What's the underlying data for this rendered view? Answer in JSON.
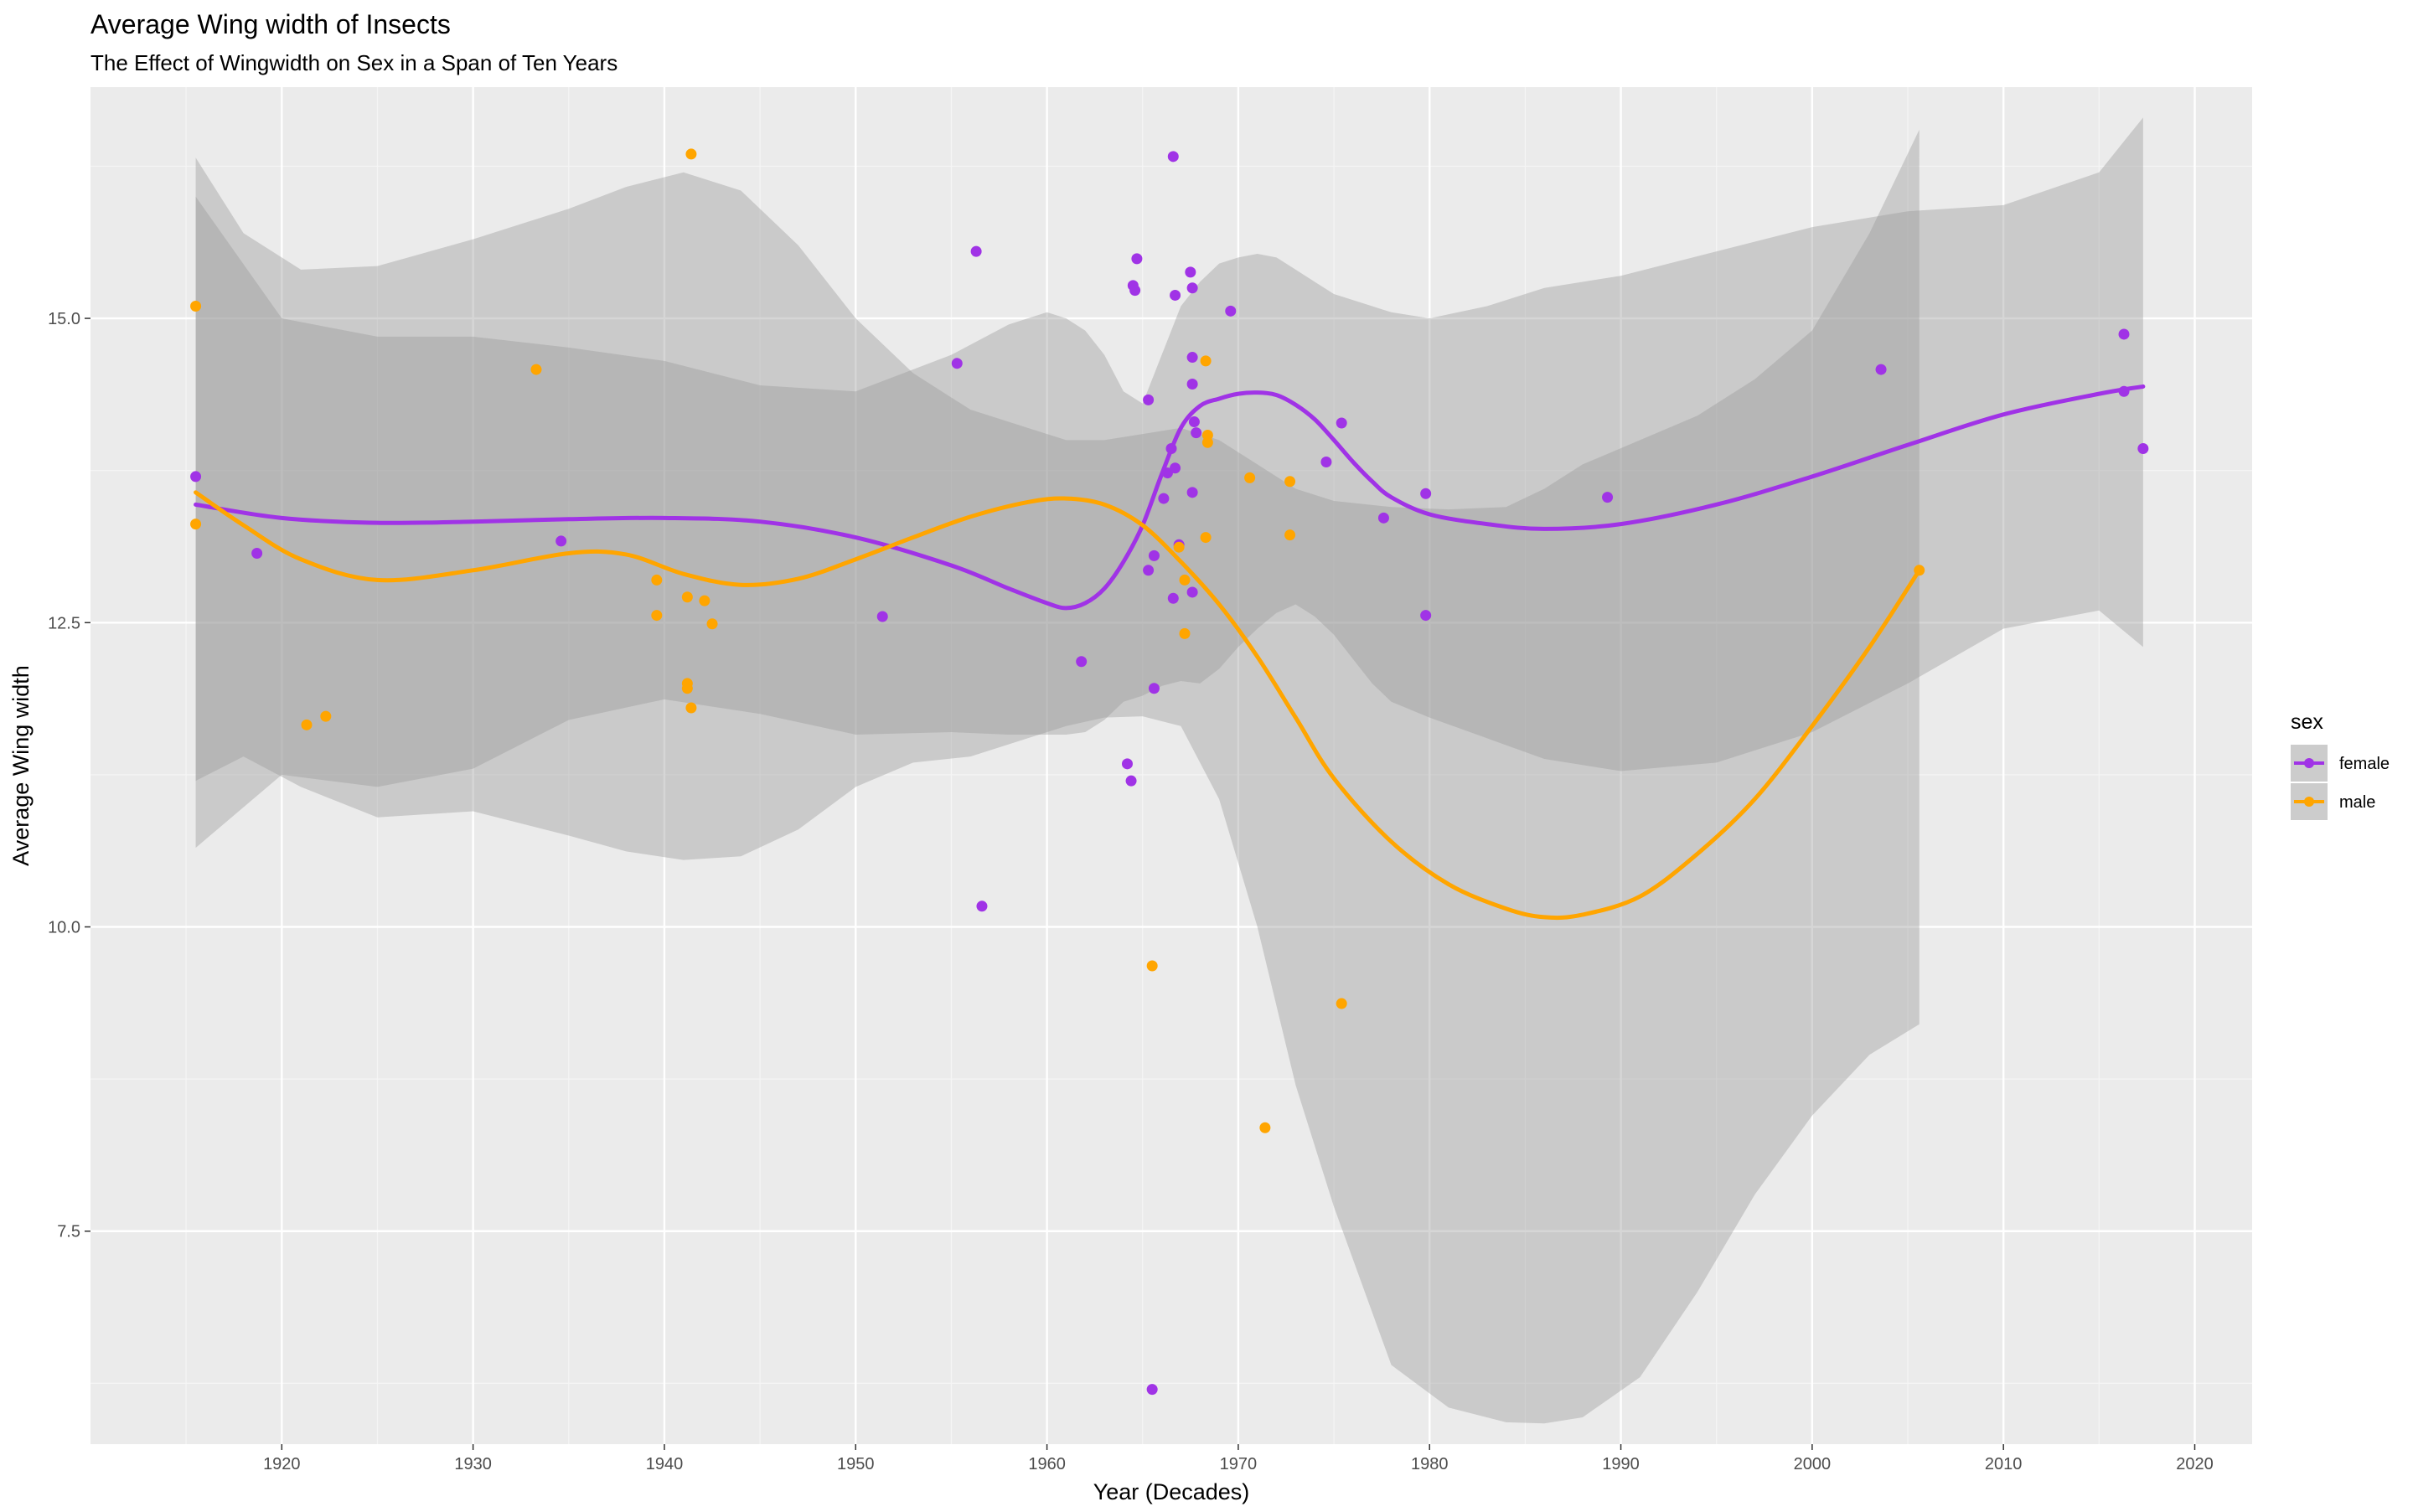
{
  "chart_data": {
    "type": "scatter",
    "title": "Average Wing width of Insects",
    "subtitle": "The Effect of Wingwidth on Sex in a Span of Ten Years",
    "xlabel": "Year (Decades)",
    "ylabel": "Average Wing width",
    "xlim": [
      1910,
      2023
    ],
    "ylim": [
      5.75,
      16.9
    ],
    "x_ticks": [
      1920,
      1930,
      1940,
      1950,
      1960,
      1970,
      1980,
      1990,
      2000,
      2010,
      2020
    ],
    "y_ticks": [
      7.5,
      10.0,
      12.5,
      15.0
    ],
    "y_tick_labels": [
      "7.5",
      "10.0",
      "12.5",
      "15.0"
    ],
    "grid": true,
    "legend": {
      "title": "sex",
      "position": "right"
    },
    "series": [
      {
        "name": "female",
        "color": "#a033e6",
        "points": [
          [
            1915.5,
            13.7
          ],
          [
            1918.7,
            13.07
          ],
          [
            1934.6,
            13.17
          ],
          [
            1951.4,
            12.55
          ],
          [
            1955.3,
            14.63
          ],
          [
            1956.3,
            15.55
          ],
          [
            1956.6,
            10.17
          ],
          [
            1961.8,
            12.18
          ],
          [
            1964.2,
            11.34
          ],
          [
            1964.4,
            11.2
          ],
          [
            1964.5,
            15.27
          ],
          [
            1964.6,
            15.23
          ],
          [
            1964.7,
            15.49
          ],
          [
            1965.3,
            14.33
          ],
          [
            1965.3,
            12.93
          ],
          [
            1965.6,
            13.05
          ],
          [
            1965.6,
            11.96
          ],
          [
            1965.5,
            6.2
          ],
          [
            1966.1,
            13.52
          ],
          [
            1966.3,
            13.73
          ],
          [
            1966.5,
            13.93
          ],
          [
            1966.6,
            16.33
          ],
          [
            1966.6,
            12.7
          ],
          [
            1966.7,
            15.19
          ],
          [
            1966.7,
            13.77
          ],
          [
            1966.9,
            13.14
          ],
          [
            1967.5,
            15.38
          ],
          [
            1967.6,
            15.25
          ],
          [
            1967.6,
            14.68
          ],
          [
            1967.6,
            14.46
          ],
          [
            1967.7,
            14.15
          ],
          [
            1967.8,
            14.06
          ],
          [
            1967.6,
            13.57
          ],
          [
            1967.6,
            12.75
          ],
          [
            1969.6,
            15.06
          ],
          [
            1974.6,
            13.82
          ],
          [
            1975.4,
            14.14
          ],
          [
            1977.6,
            13.36
          ],
          [
            1979.8,
            13.56
          ],
          [
            1979.8,
            12.56
          ],
          [
            1989.3,
            13.53
          ],
          [
            2003.6,
            14.58
          ],
          [
            2016.3,
            14.87
          ],
          [
            2016.3,
            14.4
          ],
          [
            2017.3,
            13.93
          ]
        ],
        "smooth_x": [
          1915.5,
          1920,
          1925,
          1930,
          1935,
          1940,
          1945,
          1950,
          1955,
          1958,
          1960,
          1961,
          1962,
          1963,
          1964,
          1965,
          1966,
          1967,
          1968,
          1969,
          1970,
          1971,
          1972,
          1973,
          1974,
          1975,
          1976,
          1977,
          1978,
          1980,
          1983,
          1986,
          1990,
          1995,
          2000,
          2005,
          2010,
          2015,
          2017.3
        ],
        "smooth_y": [
          13.47,
          13.36,
          13.32,
          13.33,
          13.35,
          13.36,
          13.33,
          13.2,
          12.97,
          12.78,
          12.66,
          12.62,
          12.66,
          12.78,
          13.0,
          13.3,
          13.72,
          14.1,
          14.28,
          14.34,
          14.38,
          14.39,
          14.37,
          14.29,
          14.17,
          14.0,
          13.82,
          13.66,
          13.53,
          13.39,
          13.31,
          13.27,
          13.31,
          13.47,
          13.7,
          13.96,
          14.21,
          14.38,
          14.44
        ],
        "band_upper": [
          16.0,
          15.0,
          14.85,
          14.85,
          14.76,
          14.65,
          14.45,
          14.4,
          14.7,
          14.95,
          15.05,
          15.0,
          14.9,
          14.7,
          14.4,
          14.3,
          14.7,
          15.1,
          15.3,
          15.45,
          15.5,
          15.53,
          15.5,
          15.4,
          15.3,
          15.2,
          15.15,
          15.1,
          15.05,
          15.0,
          15.1,
          15.25,
          15.35,
          15.55,
          15.75,
          15.88,
          15.93,
          16.2,
          16.65
        ],
        "band_lower": [
          10.65,
          11.25,
          11.15,
          11.3,
          11.7,
          11.87,
          11.75,
          11.58,
          11.6,
          11.58,
          11.58,
          11.58,
          11.6,
          11.7,
          11.85,
          11.9,
          11.98,
          12.02,
          12.0,
          12.12,
          12.3,
          12.45,
          12.58,
          12.65,
          12.55,
          12.4,
          12.2,
          12.0,
          11.85,
          11.72,
          11.55,
          11.38,
          11.28,
          11.35,
          11.6,
          12.0,
          12.45,
          12.6,
          12.3
        ]
      },
      {
        "name": "male",
        "color": "#ffa500",
        "points": [
          [
            1915.5,
            15.1
          ],
          [
            1915.5,
            13.31
          ],
          [
            1921.3,
            11.66
          ],
          [
            1922.3,
            11.73
          ],
          [
            1933.3,
            14.58
          ],
          [
            1939.6,
            12.85
          ],
          [
            1939.6,
            12.56
          ],
          [
            1941.2,
            12.71
          ],
          [
            1941.2,
            12.0
          ],
          [
            1941.2,
            11.96
          ],
          [
            1941.4,
            11.8
          ],
          [
            1941.4,
            16.35
          ],
          [
            1942.1,
            12.68
          ],
          [
            1942.5,
            12.49
          ],
          [
            1965.5,
            9.68
          ],
          [
            1966.9,
            13.12
          ],
          [
            1967.2,
            12.85
          ],
          [
            1967.2,
            12.41
          ],
          [
            1968.3,
            14.65
          ],
          [
            1968.4,
            14.04
          ],
          [
            1968.4,
            13.98
          ],
          [
            1968.3,
            13.2
          ],
          [
            1970.6,
            13.69
          ],
          [
            1971.4,
            8.35
          ],
          [
            1972.7,
            13.66
          ],
          [
            1972.7,
            13.22
          ],
          [
            1975.4,
            9.37
          ],
          [
            2005.6,
            12.93
          ]
        ],
        "smooth_x": [
          1915.5,
          1918,
          1921,
          1925,
          1930,
          1935,
          1938,
          1941,
          1944,
          1947,
          1950,
          1953,
          1956,
          1959,
          1961,
          1963,
          1965,
          1967,
          1969,
          1971,
          1973,
          1975,
          1978,
          1981,
          1984,
          1986,
          1988,
          1991,
          1994,
          1997,
          2000,
          2003,
          2005.6
        ],
        "smooth_y": [
          13.57,
          13.3,
          13.02,
          12.85,
          12.93,
          13.07,
          13.06,
          12.9,
          12.81,
          12.86,
          13.02,
          13.2,
          13.37,
          13.49,
          13.52,
          13.47,
          13.3,
          13.0,
          12.65,
          12.22,
          11.72,
          11.22,
          10.7,
          10.35,
          10.15,
          10.08,
          10.1,
          10.25,
          10.6,
          11.05,
          11.65,
          12.3,
          12.93
        ],
        "band_upper": [
          16.32,
          15.7,
          15.4,
          15.43,
          15.65,
          15.9,
          16.08,
          16.2,
          16.05,
          15.6,
          15.0,
          14.55,
          14.25,
          14.1,
          14.0,
          14.0,
          14.05,
          14.1,
          14.0,
          13.8,
          13.6,
          13.5,
          13.45,
          13.43,
          13.45,
          13.6,
          13.8,
          14.0,
          14.2,
          14.5,
          14.9,
          15.7,
          16.55
        ],
        "band_lower": [
          11.2,
          11.4,
          11.15,
          10.9,
          10.95,
          10.75,
          10.62,
          10.55,
          10.58,
          10.8,
          11.15,
          11.35,
          11.4,
          11.55,
          11.65,
          11.72,
          11.73,
          11.65,
          11.05,
          10.0,
          8.7,
          7.7,
          6.4,
          6.05,
          5.93,
          5.92,
          5.97,
          6.3,
          7.0,
          7.8,
          8.45,
          8.95,
          9.2
        ]
      }
    ]
  }
}
